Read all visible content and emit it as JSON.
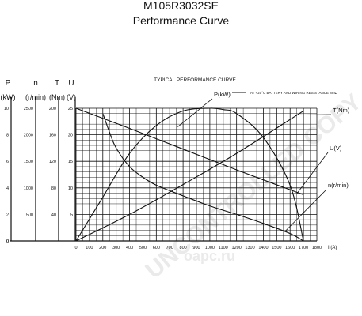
{
  "header": {
    "model": "M105R3032SE",
    "subtitle": "Performance Curve"
  },
  "watermark": {
    "line1": "UNCONTROLLED COPY",
    "line2": "oapc.ru"
  },
  "chart_data": {
    "type": "line",
    "title": "TYPICAL PERFORMANCE CURVE",
    "note": "AT +20°C  BATTERY AND WIRING RESISTANCE 8mΩ",
    "xlabel": "I (A)",
    "x_ticks": [
      0,
      100,
      200,
      300,
      400,
      500,
      600,
      700,
      800,
      900,
      1000,
      1100,
      1200,
      1300,
      1400,
      1500,
      1600,
      1700,
      1800
    ],
    "xlim": [
      0,
      1800
    ],
    "axes": [
      {
        "label": "P",
        "unit": "(kW)",
        "ticks": [
          0,
          2,
          4,
          6,
          8,
          10
        ],
        "ylim": [
          0,
          10
        ]
      },
      {
        "label": "n",
        "unit": "(r/min)",
        "ticks": [
          500,
          1000,
          1500,
          2000,
          2500
        ],
        "ylim": [
          0,
          2500
        ]
      },
      {
        "label": "T",
        "unit": "(Nm)",
        "ticks": [
          40,
          80,
          120,
          160,
          200
        ],
        "ylim": [
          0,
          200
        ]
      },
      {
        "label": "U",
        "unit": "(V)",
        "ticks": [
          5,
          10,
          15,
          20,
          25
        ],
        "ylim": [
          0,
          25
        ]
      }
    ],
    "series": [
      {
        "name": "P(kW)",
        "axis": "P",
        "color": "#111111",
        "x": [
          0,
          200,
          400,
          600,
          800,
          1000,
          1100,
          1200,
          1400,
          1600,
          1700
        ],
        "y": [
          0,
          3.3,
          6.6,
          8.7,
          9.8,
          10.0,
          9.9,
          9.6,
          7.8,
          4.2,
          0
        ]
      },
      {
        "name": "T(Nm)",
        "axis": "T",
        "color": "#111111",
        "x": [
          0,
          400,
          800,
          1200,
          1700
        ],
        "y": [
          0,
          40,
          85,
          132,
          196
        ]
      },
      {
        "name": "U(V)",
        "axis": "U",
        "color": "#111111",
        "x": [
          0,
          400,
          800,
          1200,
          1700
        ],
        "y": [
          25,
          21.2,
          17.3,
          13.4,
          8.7
        ]
      },
      {
        "name": "n(r/min)",
        "axis": "n",
        "color": "#111111",
        "x": [
          200,
          250,
          300,
          400,
          500,
          600,
          800,
          1000,
          1200,
          1400,
          1600,
          1700
        ],
        "y": [
          2400,
          2050,
          1750,
          1400,
          1200,
          1050,
          850,
          660,
          500,
          330,
          140,
          0
        ]
      }
    ],
    "grid": true
  }
}
